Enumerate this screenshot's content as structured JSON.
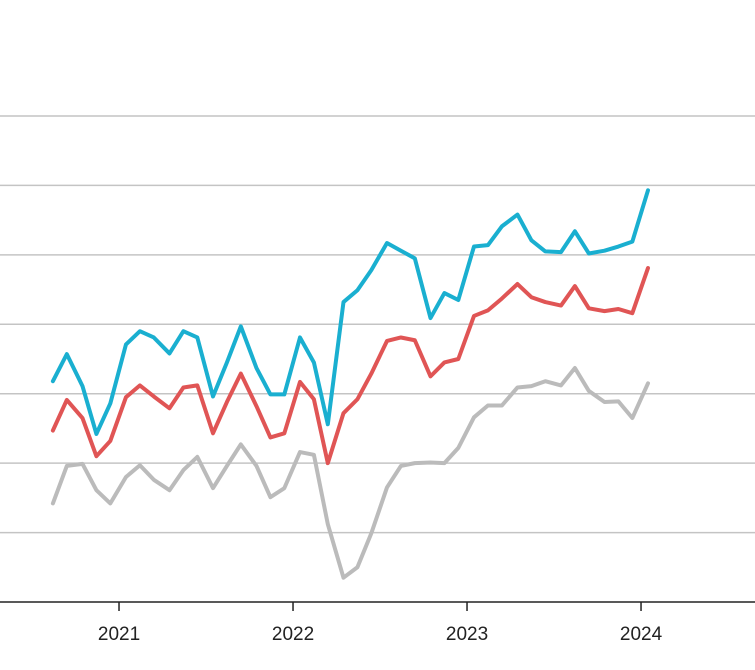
{
  "chart_data": {
    "type": "line",
    "x": [
      2020.62,
      2020.7,
      2020.79,
      2020.87,
      2020.95,
      2021.04,
      2021.12,
      2021.2,
      2021.29,
      2021.37,
      2021.45,
      2021.54,
      2021.62,
      2021.7,
      2021.79,
      2021.87,
      2021.95,
      2022.04,
      2022.12,
      2022.2,
      2022.29,
      2022.37,
      2022.45,
      2022.54,
      2022.62,
      2022.7,
      2022.79,
      2022.87,
      2022.95,
      2023.04,
      2023.12,
      2023.2,
      2023.29,
      2023.37,
      2023.45,
      2023.54,
      2023.62,
      2023.7,
      2023.79,
      2023.87,
      2023.95,
      2024.04
    ],
    "series": [
      {
        "color": "#bbbbbb",
        "values": [
          1.42,
          1.96,
          1.99,
          1.61,
          1.42,
          1.8,
          1.97,
          1.76,
          1.61,
          1.9,
          2.09,
          1.64,
          1.96,
          2.27,
          1.96,
          1.51,
          1.64,
          2.16,
          2.12,
          1.12,
          0.35,
          0.5,
          0.99,
          1.65,
          1.96,
          2.0,
          2.01,
          2.0,
          2.22,
          2.66,
          2.83,
          2.83,
          3.09,
          3.11,
          3.18,
          3.12,
          3.37,
          3.04,
          2.88,
          2.89,
          2.65,
          3.15
        ]
      },
      {
        "color": "#e05555",
        "values": [
          2.47,
          2.91,
          2.65,
          2.1,
          2.32,
          2.95,
          3.12,
          2.96,
          2.79,
          3.09,
          3.12,
          2.43,
          2.88,
          3.29,
          2.82,
          2.37,
          2.43,
          3.17,
          2.92,
          2.0,
          2.72,
          2.92,
          3.29,
          3.76,
          3.81,
          3.77,
          3.25,
          3.45,
          3.5,
          4.12,
          4.2,
          4.37,
          4.58,
          4.39,
          4.32,
          4.27,
          4.55,
          4.23,
          4.19,
          4.22,
          4.16,
          4.81
        ]
      },
      {
        "color": "#1aafd0",
        "values": [
          3.18,
          3.57,
          3.11,
          2.42,
          2.86,
          3.71,
          3.9,
          3.81,
          3.58,
          3.9,
          3.81,
          2.96,
          3.45,
          3.97,
          3.37,
          2.99,
          2.99,
          3.81,
          3.45,
          2.56,
          4.32,
          4.49,
          4.78,
          5.17,
          5.06,
          4.95,
          4.09,
          4.45,
          4.35,
          5.12,
          5.14,
          5.41,
          5.58,
          5.21,
          5.05,
          5.04,
          5.34,
          5.02,
          5.06,
          5.12,
          5.19,
          5.93
        ]
      }
    ],
    "xlim": [
      2020.316,
      2024.655
    ],
    "xticks": [
      2021,
      2022,
      2023,
      2024
    ],
    "ylim": [
      0,
      7
    ],
    "yticks": [
      0,
      1,
      2,
      3,
      4,
      5,
      6,
      7
    ],
    "grid": true
  }
}
